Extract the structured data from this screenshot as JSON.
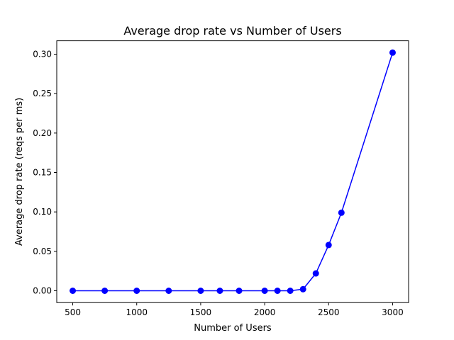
{
  "chart_data": {
    "type": "line",
    "title": "Average drop rate vs Number of Users",
    "xlabel": "Number of Users",
    "ylabel": "Average drop rate (reqs per ms)",
    "xlim": [
      375,
      3125
    ],
    "ylim": [
      -0.015,
      0.317
    ],
    "xticks": [
      500,
      1000,
      1500,
      2000,
      2500,
      3000
    ],
    "yticks": [
      "0.00",
      "0.05",
      "0.10",
      "0.15",
      "0.20",
      "0.25",
      "0.30"
    ],
    "grid": false,
    "series": [
      {
        "color": "#0000ff",
        "marker": "circle",
        "x": [
          500,
          750,
          1000,
          1250,
          1500,
          1650,
          1800,
          2000,
          2100,
          2200,
          2300,
          2400,
          2500,
          2600,
          3000
        ],
        "y": [
          0.0,
          0.0,
          0.0,
          0.0,
          0.0,
          0.0,
          0.0,
          0.0,
          0.0,
          0.0,
          0.002,
          0.022,
          0.058,
          0.099,
          0.302
        ]
      }
    ]
  }
}
